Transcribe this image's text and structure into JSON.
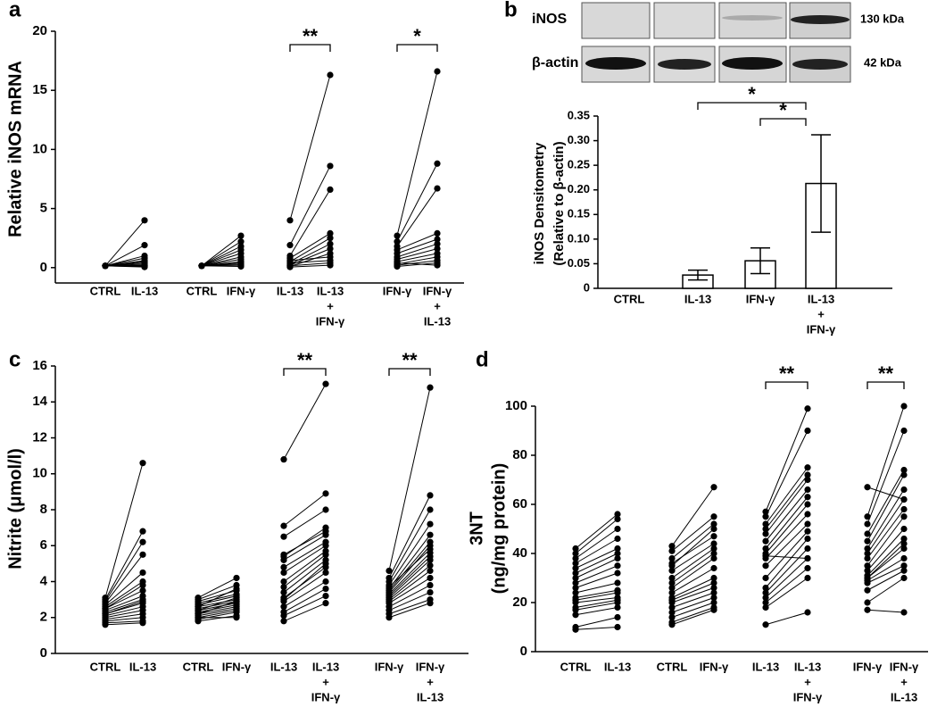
{
  "chart_data": [
    {
      "type": "paired",
      "label": "a",
      "ylabel": [
        "Relative iNOS mRNA"
      ],
      "ylim": [
        -1.3,
        20
      ],
      "yticks": [
        0,
        5,
        10,
        15,
        20
      ],
      "groups": [
        {
          "categories": [
            [
              "CTRL"
            ],
            [
              "IL-13"
            ]
          ],
          "before": [
            0.15,
            0.15,
            0.15,
            0.15,
            0.15,
            0.15,
            0.15,
            0.15,
            0.15,
            0.15,
            0.15,
            0.15
          ],
          "after": [
            4.0,
            1.9,
            1.0,
            0.8,
            0.5,
            0.3,
            0.2,
            0.1,
            0.6,
            0.4,
            0.15,
            0.05
          ]
        },
        {
          "categories": [
            [
              "CTRL"
            ],
            [
              "IFN-γ"
            ]
          ],
          "before": [
            0.15,
            0.15,
            0.15,
            0.15,
            0.15,
            0.15,
            0.15,
            0.15,
            0.15,
            0.15,
            0.15,
            0.15
          ],
          "after": [
            2.7,
            2.2,
            1.8,
            1.5,
            1.2,
            0.9,
            0.7,
            0.5,
            0.3,
            0.2,
            0.1,
            0.4
          ]
        },
        {
          "categories": [
            [
              "IL-13"
            ],
            [
              "IL-13",
              "+",
              "IFN-γ"
            ]
          ],
          "significance": "**",
          "before": [
            4.0,
            1.9,
            1.0,
            0.8,
            0.5,
            0.3,
            0.2,
            0.1,
            0.6,
            0.4,
            0.15,
            0.05
          ],
          "after": [
            16.3,
            8.6,
            6.6,
            2.9,
            2.5,
            2.0,
            1.6,
            1.2,
            0.9,
            0.6,
            0.4,
            0.2
          ]
        },
        {
          "categories": [
            [
              "IFN-γ"
            ],
            [
              "IFN-γ",
              "+",
              "IL-13"
            ]
          ],
          "significance": "*",
          "before": [
            2.7,
            2.2,
            1.8,
            1.5,
            1.2,
            0.9,
            0.7,
            0.5,
            0.3,
            0.2,
            0.1,
            0.4
          ],
          "after": [
            16.6,
            8.8,
            6.7,
            2.9,
            2.4,
            2.0,
            1.6,
            1.2,
            0.9,
            0.6,
            0.4,
            0.2
          ]
        }
      ]
    },
    {
      "type": "bar",
      "label": "b",
      "ylabel": [
        "iNOS Densitometry",
        "(Relative to β-actin)"
      ],
      "ylim": [
        0,
        0.35
      ],
      "yticks": [
        0,
        0.05,
        {
          "value": 0.1,
          "label": "0.10"
        },
        0.15,
        {
          "value": 0.2,
          "label": "0.20"
        },
        0.25,
        {
          "value": 0.3,
          "label": "0.30"
        },
        0.35
      ],
      "categories": [
        [
          "CTRL"
        ],
        [
          "IL-13"
        ],
        [
          "IFN-γ"
        ],
        [
          "IL-13",
          "+",
          "IFN-γ"
        ]
      ],
      "values": [
        0,
        0.027,
        0.056,
        0.213
      ],
      "errors": [
        null,
        0.01,
        0.026,
        0.099
      ],
      "significance": [
        "*",
        "*"
      ],
      "color": "#ffffff",
      "blot": {
        "rows": [
          "iNOS",
          "β-actin"
        ],
        "sizes": [
          "130 kDa",
          "42 kDa"
        ]
      }
    },
    {
      "type": "paired",
      "label": "c",
      "ylabel": [
        "Nitrite (μmol/l)"
      ],
      "ylim": [
        0,
        16
      ],
      "yticks": [
        0,
        2,
        4,
        6,
        8,
        10,
        12,
        14,
        16
      ],
      "groups": [
        {
          "categories": [
            [
              "CTRL"
            ],
            [
              "IL-13"
            ]
          ],
          "before": [
            3.1,
            3.0,
            2.9,
            2.8,
            2.7,
            2.6,
            2.5,
            2.4,
            2.3,
            2.2,
            2.1,
            2.0,
            1.9,
            1.8,
            1.7,
            1.6,
            2.5,
            2.2
          ],
          "after": [
            10.6,
            6.8,
            6.2,
            5.5,
            4.5,
            4.0,
            3.5,
            3.2,
            3.0,
            2.8,
            2.6,
            2.4,
            2.2,
            2.0,
            1.8,
            1.7,
            3.8,
            2.9
          ]
        },
        {
          "categories": [
            [
              "CTRL"
            ],
            [
              "IFN-γ"
            ]
          ],
          "before": [
            3.1,
            3.0,
            2.9,
            2.8,
            2.7,
            2.6,
            2.5,
            2.4,
            2.3,
            2.2,
            2.1,
            2.0,
            1.9,
            1.8,
            2.6,
            2.4,
            2.2,
            2.0
          ],
          "after": [
            4.2,
            3.8,
            3.5,
            3.3,
            3.2,
            3.0,
            2.9,
            2.8,
            2.7,
            2.6,
            2.5,
            2.4,
            2.3,
            2.1,
            3.6,
            3.1,
            2.9,
            2.0
          ]
        },
        {
          "categories": [
            [
              "IL-13"
            ],
            [
              "IL-13",
              "+",
              "IFN-γ"
            ]
          ],
          "significance": "**",
          "before": [
            10.8,
            7.1,
            6.5,
            5.4,
            5.2,
            4.8,
            4.5,
            4.0,
            3.7,
            3.4,
            3.1,
            2.9,
            2.6,
            2.3,
            2.1,
            1.8,
            5.5,
            3.0
          ],
          "after": [
            15.0,
            8.9,
            8.0,
            7.0,
            6.6,
            6.2,
            6.0,
            5.7,
            5.5,
            5.2,
            4.8,
            4.5,
            4.0,
            3.6,
            3.2,
            2.8,
            6.8,
            5.0
          ]
        },
        {
          "categories": [
            [
              "IFN-γ"
            ],
            [
              "IFN-γ",
              "+",
              "IL-13"
            ]
          ],
          "significance": "**",
          "before": [
            4.6,
            4.2,
            4.0,
            3.8,
            3.6,
            3.5,
            3.4,
            3.3,
            3.2,
            3.1,
            3.0,
            2.9,
            2.8,
            2.6,
            2.4,
            2.2,
            2.0,
            3.7
          ],
          "after": [
            14.8,
            8.8,
            8.0,
            7.2,
            6.6,
            6.2,
            6.0,
            5.6,
            5.4,
            5.2,
            4.9,
            4.6,
            4.2,
            3.8,
            3.4,
            3.0,
            2.8,
            5.8
          ]
        }
      ]
    },
    {
      "type": "paired",
      "label": "d",
      "ylabel": [
        "3NT",
        "(ng/mg protein)"
      ],
      "ylim": [
        0,
        100
      ],
      "yticks": [
        0,
        20,
        40,
        60,
        80,
        100
      ],
      "groups": [
        {
          "categories": [
            [
              "CTRL"
            ],
            [
              "IL-13"
            ]
          ],
          "before": [
            42,
            40,
            38,
            36,
            34,
            30,
            28,
            26,
            24,
            22,
            21,
            20,
            18,
            17,
            15,
            10,
            9,
            32
          ],
          "after": [
            56,
            54,
            50,
            46,
            42,
            38,
            35,
            32,
            28,
            25,
            24,
            22,
            21,
            20,
            18,
            14,
            10,
            40
          ]
        },
        {
          "categories": [
            [
              "CTRL"
            ],
            [
              "IFN-γ"
            ]
          ],
          "before": [
            43,
            41,
            38,
            36,
            33,
            30,
            28,
            26,
            24,
            22,
            21,
            20,
            18,
            16,
            14,
            12,
            11,
            35
          ],
          "after": [
            67,
            55,
            52,
            47,
            44,
            42,
            40,
            38,
            34,
            30,
            28,
            26,
            24,
            22,
            20,
            18,
            17,
            50
          ]
        },
        {
          "categories": [
            [
              "IL-13"
            ],
            [
              "IL-13",
              "+",
              "IFN-γ"
            ]
          ],
          "significance": "**",
          "before": [
            57,
            55,
            52,
            50,
            48,
            45,
            42,
            40,
            38,
            35,
            30,
            26,
            24,
            22,
            20,
            18,
            11,
            39
          ],
          "after": [
            99,
            90,
            75,
            72,
            70,
            66,
            63,
            60,
            56,
            52,
            49,
            46,
            42,
            38,
            34,
            30,
            16,
            38
          ]
        },
        {
          "categories": [
            [
              "IFN-γ"
            ],
            [
              "IFN-γ",
              "+",
              "IL-13"
            ]
          ],
          "significance": "**",
          "before": [
            67,
            55,
            52,
            48,
            45,
            42,
            40,
            38,
            35,
            33,
            31,
            30,
            29,
            28,
            25,
            20,
            17,
            30
          ],
          "after": [
            62,
            100,
            90,
            74,
            72,
            66,
            62,
            58,
            55,
            50,
            46,
            42,
            38,
            35,
            33,
            30,
            16,
            44
          ]
        }
      ]
    }
  ]
}
